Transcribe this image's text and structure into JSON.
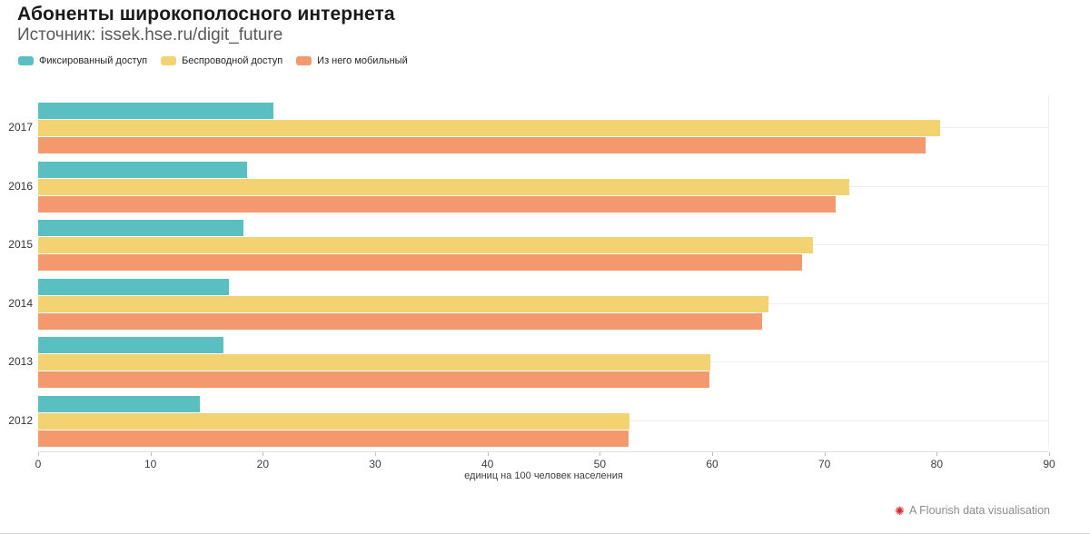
{
  "header": {
    "title": "Абоненты широкополосного интернета",
    "subtitle": "Источник: issek.hse.ru/digit_future"
  },
  "legend": [
    {
      "label": "Фиксированный доступ",
      "color": "#5ABFC0"
    },
    {
      "label": "Беспроводной доступ",
      "color": "#F3D271"
    },
    {
      "label": "Из него мобильный",
      "color": "#F4986E"
    }
  ],
  "chart_data": {
    "type": "bar",
    "orientation": "horizontal",
    "title": "Абоненты широкополосного интернета",
    "categories": [
      "2017",
      "2016",
      "2015",
      "2014",
      "2013",
      "2012"
    ],
    "series": [
      {
        "name": "Фиксированный доступ",
        "color": "#5ABFC0",
        "values": [
          21.0,
          18.6,
          18.3,
          17.0,
          16.5,
          14.4
        ]
      },
      {
        "name": "Беспроводной доступ",
        "color": "#F3D271",
        "values": [
          80.4,
          72.3,
          69.0,
          65.1,
          59.9,
          52.7
        ]
      },
      {
        "name": "Из него мобильный",
        "color": "#F4986E",
        "values": [
          79.1,
          71.1,
          68.1,
          64.5,
          59.8,
          52.6
        ]
      }
    ],
    "xlim": [
      0,
      90
    ],
    "x_ticks": [
      0,
      10,
      20,
      30,
      40,
      50,
      60,
      70,
      80,
      90
    ],
    "xlabel": "единиц на 100 человек населения",
    "grid": "horizontal-per-category",
    "legend_position": "top-left"
  },
  "footer": {
    "credit": "A Flourish data visualisation",
    "icon_glyph": "✺",
    "icon_color": "#d02a2a"
  }
}
